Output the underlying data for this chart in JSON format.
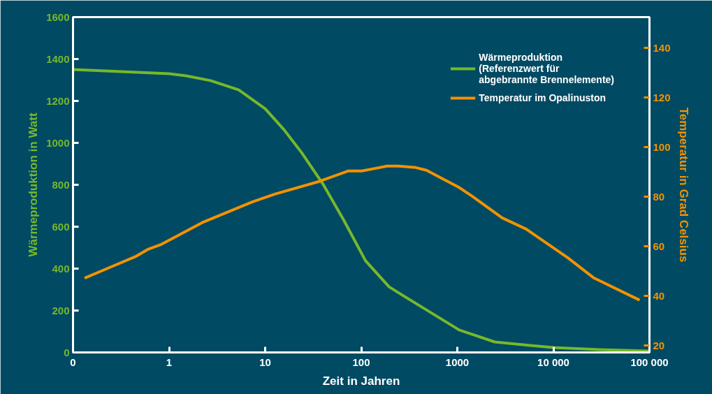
{
  "chart_data": {
    "type": "line",
    "xlabel": "Zeit in Jahren",
    "ylabel": "Wärmeproduktion in Watt",
    "y2label": "Temperatur in Grad Celsius",
    "log": "x",
    "xlim": [
      0.1,
      100000
    ],
    "xticks": [
      {
        "value": 0.1,
        "label": "0"
      },
      1,
      10,
      100,
      1000,
      {
        "value": 10000,
        "label": "10 000"
      },
      {
        "value": 100000,
        "label": "100 000"
      }
    ],
    "ylim": [
      0,
      1600
    ],
    "yticks": [
      0,
      200,
      400,
      600,
      800,
      1000,
      1200,
      1400,
      1600
    ],
    "y2lim": [
      17.2,
      152.5
    ],
    "y2ticks": [
      20,
      40,
      60,
      80,
      100,
      120,
      140
    ],
    "grid": false,
    "legend": "top right",
    "line_style": "solid",
    "marker": "none",
    "series": [
      {
        "name": "Wärmeproduktion\n(Referenzwert für\nabgebrannte Brennelemente)",
        "color": "#76b82a",
        "x": [
          0.1,
          1,
          1.5,
          2.7,
          5.3,
          10,
          15.7,
          24,
          40,
          66,
          111,
          195,
          260,
          1047,
          2455,
          10000,
          30000,
          100000
        ],
        "values": [
          1350,
          1330,
          1320,
          1297,
          1253,
          1163,
          1063,
          953,
          803,
          630,
          437,
          313,
          277,
          107,
          50,
          23,
          13,
          7
        ]
      },
      {
        "name": "Temperatur im Opalinuston",
        "color": "#f39200",
        "axis": "y2",
        "x": [
          0.132,
          0.235,
          0.454,
          0.61,
          0.83,
          2.3,
          7.4,
          12.6,
          36.5,
          72.8,
          101,
          142,
          186,
          243,
          369,
          478,
          1050,
          1420,
          2930,
          5200,
          14000,
          26500,
          79000
        ],
        "values": [
          47.2,
          51.3,
          56,
          58.9,
          60.8,
          69.9,
          78,
          81.1,
          86.2,
          90.4,
          90.4,
          91.5,
          92.4,
          92.4,
          91.8,
          90.7,
          83.7,
          80.3,
          71.5,
          67,
          55.5,
          47.2,
          38.3
        ]
      }
    ]
  }
}
